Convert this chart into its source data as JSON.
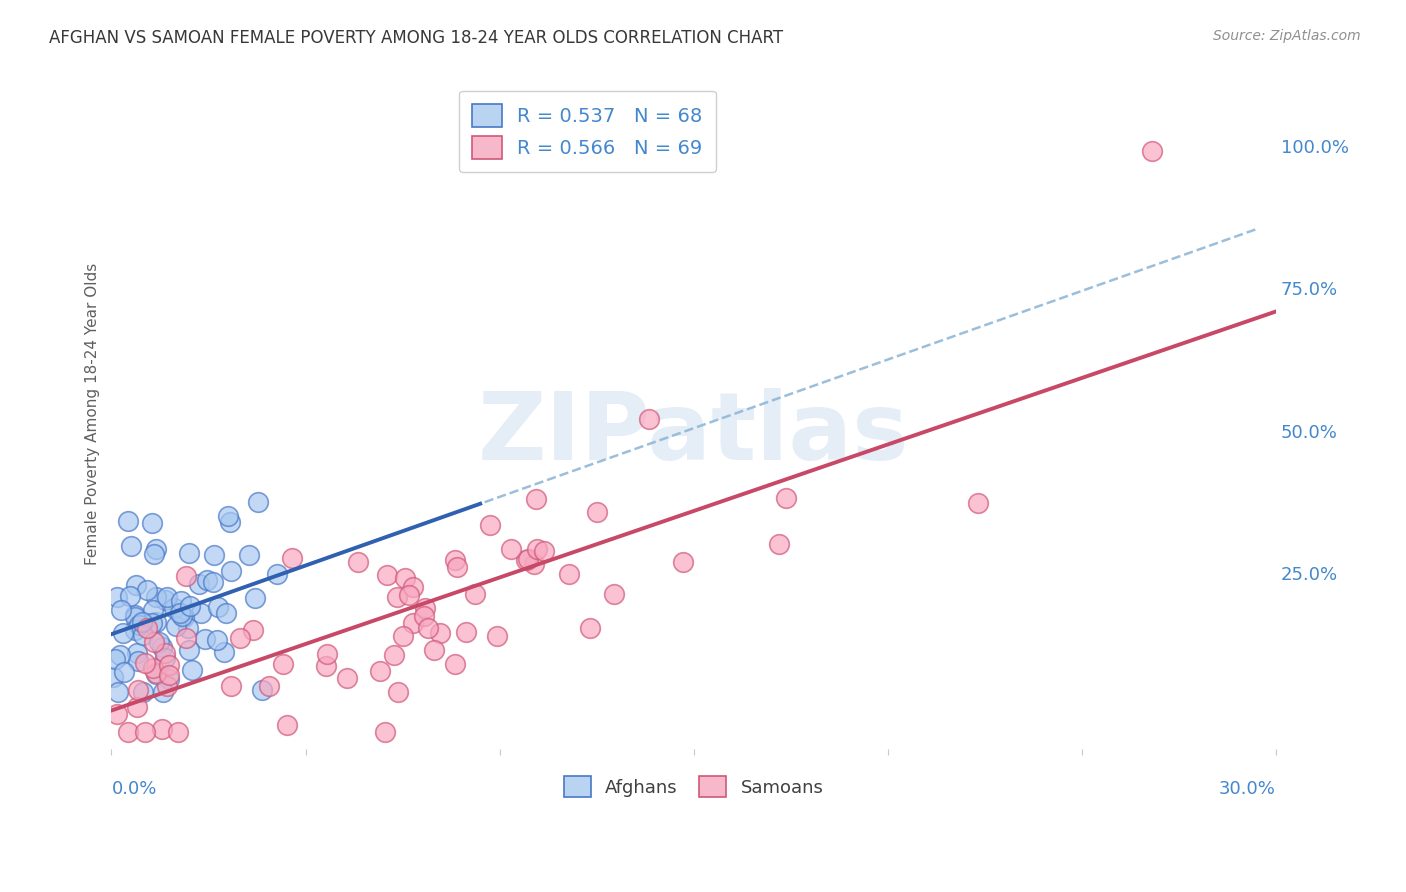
{
  "title": "AFGHAN VS SAMOAN FEMALE POVERTY AMONG 18-24 YEAR OLDS CORRELATION CHART",
  "source": "Source: ZipAtlas.com",
  "ylabel": "Female Poverty Among 18-24 Year Olds",
  "right_yticks": [
    0.0,
    0.25,
    0.5,
    0.75,
    1.0
  ],
  "right_yticklabels": [
    "",
    "25.0%",
    "50.0%",
    "75.0%",
    "100.0%"
  ],
  "xlim": [
    0.0,
    0.3
  ],
  "ylim": [
    -0.06,
    1.12
  ],
  "watermark": "ZIPatlas",
  "legend_r_entries": [
    {
      "label": "R = 0.537   N = 68",
      "face": "#b8d4f0",
      "edge": "#4878c8"
    },
    {
      "label": "R = 0.566   N = 69",
      "face": "#f8b8cc",
      "edge": "#d05878"
    }
  ],
  "afghans_face": "#a8c8f0",
  "afghans_edge": "#4878c8",
  "samoans_face": "#f8a8c0",
  "samoans_edge": "#d05878",
  "afghan_line_color": "#3060b0",
  "samoan_line_color": "#c84868",
  "dashed_line_color": "#90b8d8",
  "background_color": "#ffffff",
  "grid_color": "#e0e8f0",
  "title_color": "#383838",
  "axis_label_color": "#4488cc",
  "left_label_color": "#606060",
  "bottom_legend_labels": [
    "Afghans",
    "Samoans"
  ],
  "n_afghan": 68,
  "n_samoan": 69,
  "seed": 42
}
